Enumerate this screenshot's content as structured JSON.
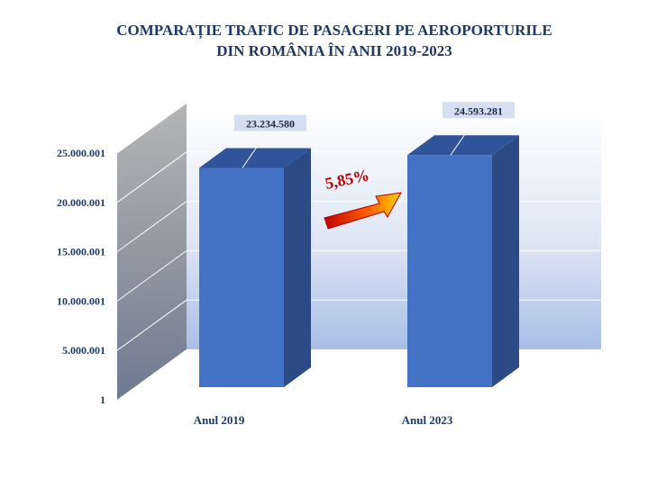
{
  "chart_data": {
    "type": "bar",
    "title_lines": [
      "COMPARAȚIE TRAFIC DE PASAGERI PE AEROPORTURILE",
      "DIN ROMÂNIA ÎN ANII 2019-2023"
    ],
    "categories": [
      "Anul 2019",
      "Anul 2023"
    ],
    "values": [
      23234580,
      24593281
    ],
    "data_labels": [
      "23.234.580",
      "24.593.281"
    ],
    "y_ticks": [
      1,
      5000001,
      10000001,
      15000001,
      20000001,
      25000001
    ],
    "y_tick_labels": [
      "1",
      "5.000.001",
      "10.000.001",
      "15.000.001",
      "20.000.001",
      "25.000.001"
    ],
    "ylim": [
      1,
      25000001
    ],
    "grid": true,
    "legend": "none",
    "annotation": "5,85%",
    "colors": {
      "title": "#1f3864",
      "bar_front": "#4472c4",
      "bar_side": "#2b4a86",
      "bar_top": "#30549a",
      "annotation": "#c00000",
      "label_box": "#b4c7e7"
    }
  }
}
